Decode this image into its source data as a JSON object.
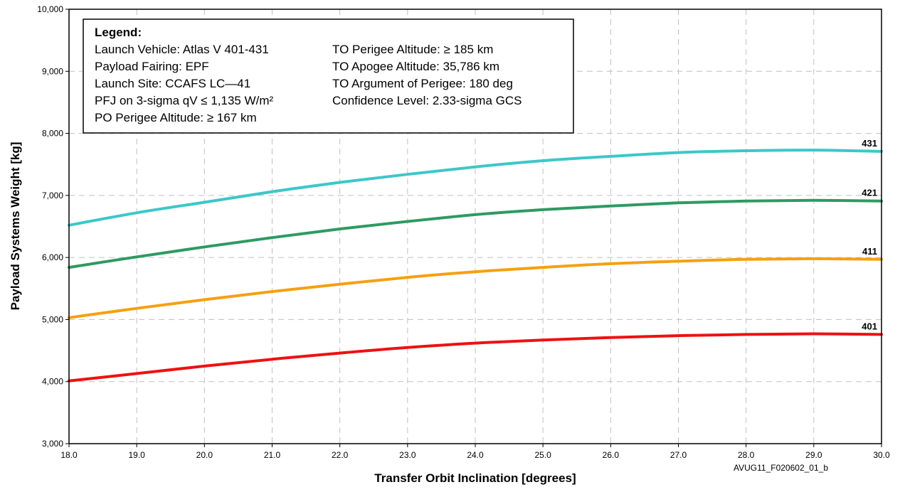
{
  "chart_data": {
    "type": "line",
    "title": "",
    "xlabel": "Transfer Orbit Inclination [degrees]",
    "ylabel": "Payload Systems Weight [kg]",
    "xlim": [
      18.0,
      30.0
    ],
    "ylim": [
      3000,
      10000
    ],
    "x_ticks": [
      "18.0",
      "19.0",
      "20.0",
      "21.0",
      "22.0",
      "23.0",
      "24.0",
      "25.0",
      "26.0",
      "27.0",
      "28.0",
      "29.0",
      "30.0"
    ],
    "y_ticks": [
      "3,000",
      "4,000",
      "5,000",
      "6,000",
      "7,000",
      "8,000",
      "9,000",
      "10,000"
    ],
    "grid": true,
    "x": [
      18,
      19,
      20,
      21,
      22,
      23,
      24,
      25,
      26,
      27,
      28,
      29,
      30
    ],
    "series": [
      {
        "name": "401",
        "color": "#ee1111",
        "values": [
          4010,
          4130,
          4250,
          4360,
          4460,
          4550,
          4620,
          4670,
          4710,
          4740,
          4760,
          4770,
          4760
        ]
      },
      {
        "name": "411",
        "color": "#f5a011",
        "values": [
          5030,
          5180,
          5320,
          5450,
          5570,
          5680,
          5770,
          5840,
          5900,
          5940,
          5970,
          5980,
          5970
        ]
      },
      {
        "name": "421",
        "color": "#2e9a62",
        "values": [
          5840,
          6010,
          6170,
          6320,
          6460,
          6580,
          6690,
          6770,
          6830,
          6880,
          6910,
          6920,
          6910
        ]
      },
      {
        "name": "431",
        "color": "#3cc7c9",
        "values": [
          6520,
          6720,
          6890,
          7060,
          7210,
          7340,
          7460,
          7560,
          7630,
          7690,
          7720,
          7730,
          7710
        ]
      }
    ],
    "legend": {
      "heading": "Legend:",
      "left_lines": [
        "Launch Vehicle: Atlas V 401-431",
        "Payload Fairing: EPF",
        "Launch Site: CCAFS LC—41",
        "PFJ on 3-sigma qV ≤ 1,135 W/m²",
        "PO Perigee Altitude: ≥ 167 km"
      ],
      "right_lines": [
        "TO Perigee Altitude: ≥ 185 km",
        "TO Apogee Altitude: 35,786 km",
        "TO Argument of Perigee: 180 deg",
        "Confidence Level: 2.33-sigma GCS"
      ],
      "placement": "top-left"
    },
    "figure_id": "AVUG11_F020602_01_b"
  }
}
